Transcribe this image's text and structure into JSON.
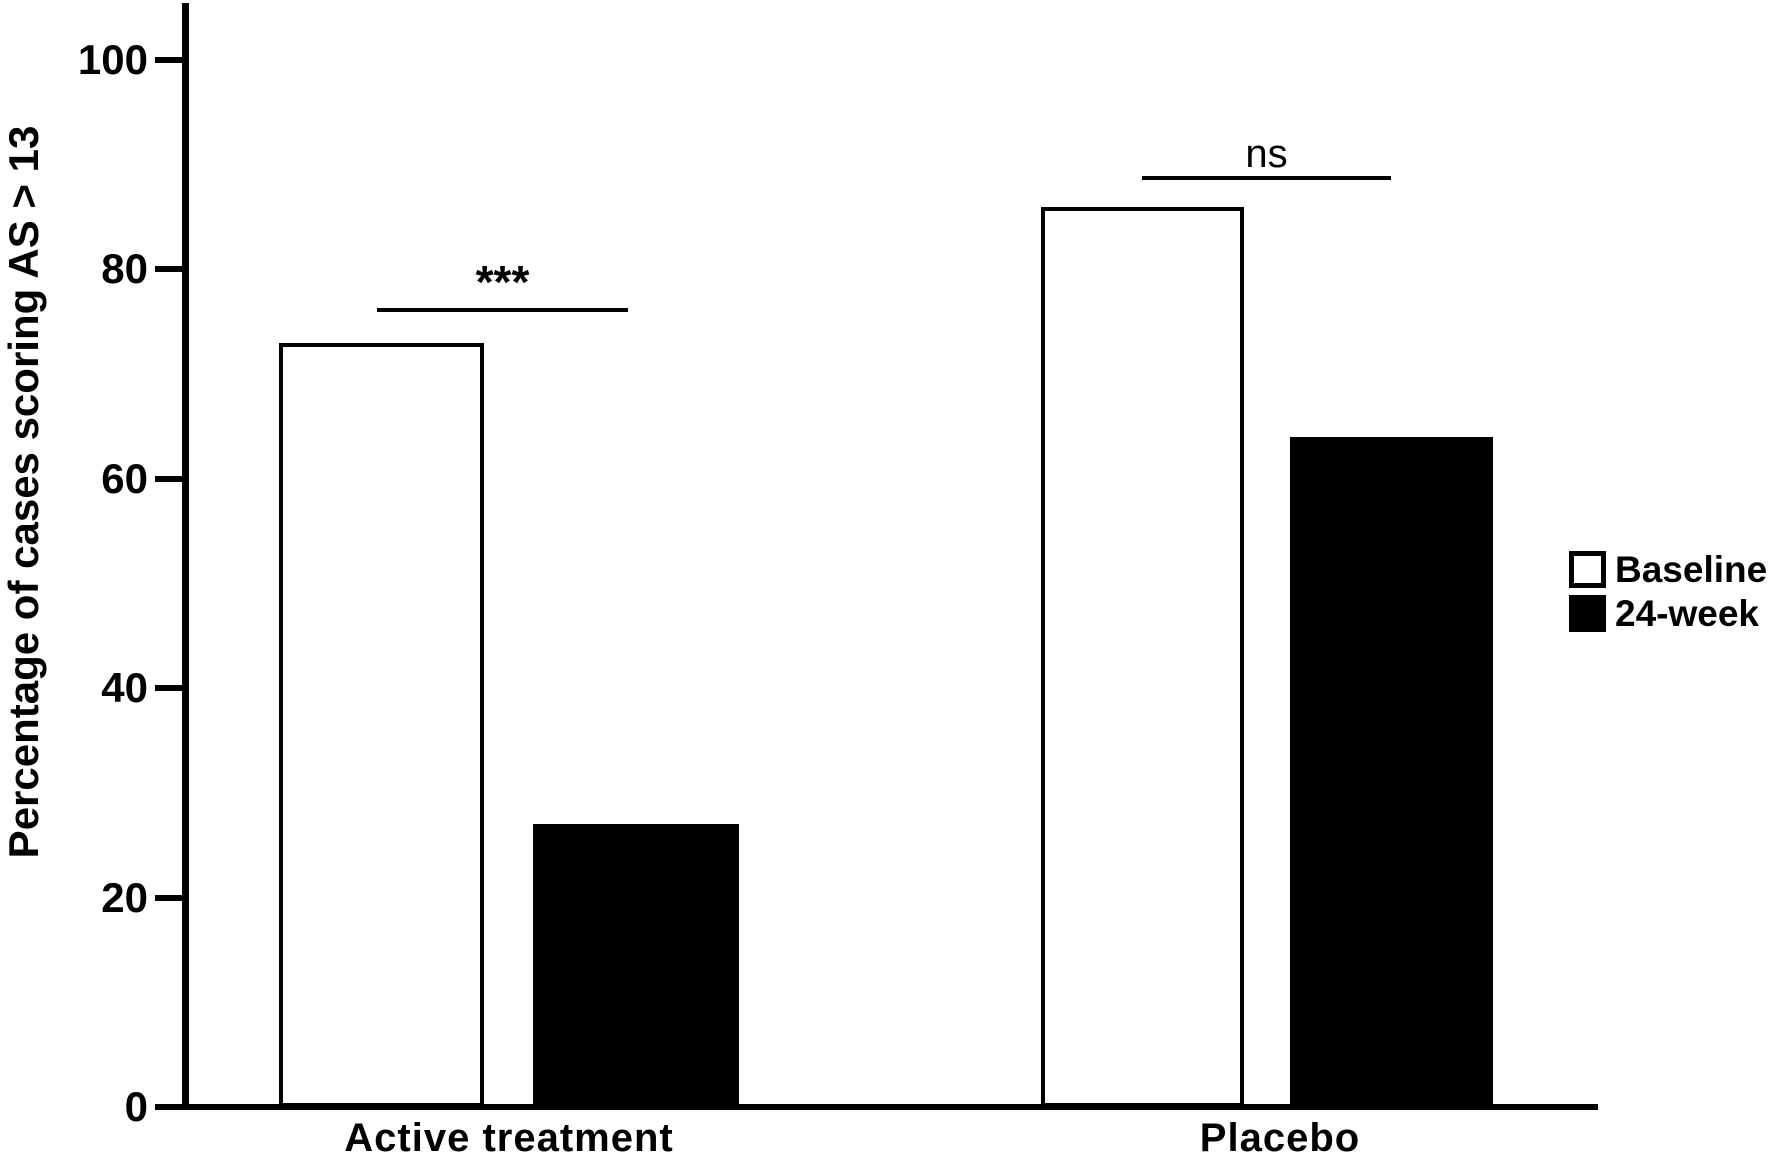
{
  "chart_data": {
    "type": "bar",
    "title": "",
    "xlabel": "",
    "ylabel": "Percentage of cases scoring AS > 13",
    "ylim": [
      0,
      100
    ],
    "yticks": [
      0,
      20,
      40,
      60,
      80,
      100
    ],
    "grid": false,
    "background": "#ffffff",
    "axis_color": "#000000",
    "categories": [
      "Active treatment",
      "Placebo"
    ],
    "series": [
      {
        "name": "Baseline",
        "fill": "#ffffff",
        "border": "#000000",
        "values": [
          73,
          86
        ]
      },
      {
        "name": "24-week",
        "fill": "#000000",
        "border": "#000000",
        "values": [
          27,
          64
        ]
      }
    ],
    "legend": {
      "position": "right",
      "entries": [
        "Baseline",
        "24-week"
      ]
    },
    "annotations": [
      {
        "label": "***",
        "category": "Active treatment"
      },
      {
        "label": "ns",
        "category": "Placebo"
      }
    ]
  }
}
